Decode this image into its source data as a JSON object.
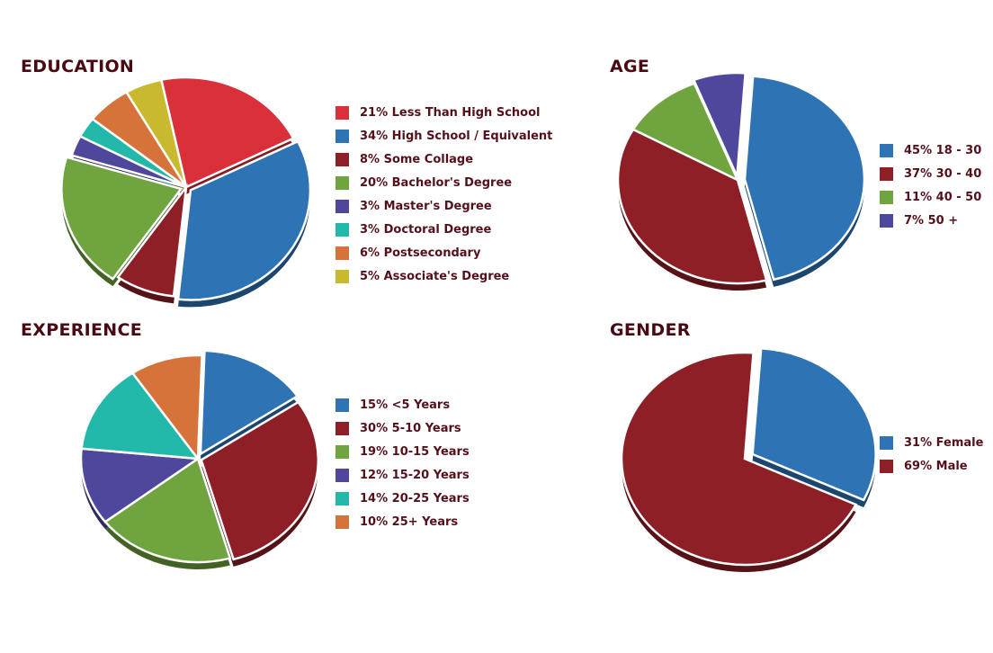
{
  "chart_data": [
    {
      "type": "pie",
      "title": "EDUCATION",
      "labels": [
        "21% Less Than High School",
        "34% High School / Equivalent",
        "8% Some Collage",
        "20% Bachelor's Degree",
        "3% Master's Degree",
        "3% Doctoral Degree",
        "6% Postsecondary",
        "5% Associate's Degree"
      ],
      "categories": [
        "Less Than High School",
        "High School / Equivalent",
        "Some Collage",
        "Bachelor's Degree",
        "Master's Degree",
        "Doctoral Degree",
        "Postsecondary",
        "Associate's Degree"
      ],
      "values": [
        21,
        34,
        8,
        20,
        3,
        3,
        6,
        5
      ],
      "colors": [
        "#d9303a",
        "#2e74b5",
        "#8e1f26",
        "#6fa43f",
        "#4f479b",
        "#22b8aa",
        "#d6733a",
        "#c9b92f"
      ],
      "legend": "right"
    },
    {
      "type": "pie",
      "title": "AGE",
      "labels": [
        "45% 18 - 30",
        "37% 30 - 40",
        "11% 40 - 50",
        "7% 50 +"
      ],
      "categories": [
        "18 - 30",
        "30 - 40",
        "40 - 50",
        "50 +"
      ],
      "values": [
        45,
        37,
        11,
        7
      ],
      "colors": [
        "#2e74b5",
        "#8e1f26",
        "#6fa43f",
        "#4f479b"
      ],
      "legend": "right"
    },
    {
      "type": "pie",
      "title": "EXPERIENCE",
      "labels": [
        "15%  <5 Years",
        "30% 5-10 Years",
        "19% 10-15 Years",
        "12% 15-20 Years",
        "14% 20-25 Years",
        "10% 25+ Years"
      ],
      "categories": [
        "<5 Years",
        "5-10 Years",
        "10-15 Years",
        "15-20 Years",
        "20-25 Years",
        "25+ Years"
      ],
      "values": [
        15,
        30,
        19,
        12,
        14,
        10
      ],
      "colors": [
        "#2e74b5",
        "#8e1f26",
        "#6fa43f",
        "#4f479b",
        "#22b8aa",
        "#d6733a"
      ],
      "legend": "right"
    },
    {
      "type": "pie",
      "title": "GENDER",
      "labels": [
        "31% Female",
        "69% Male"
      ],
      "categories": [
        "Female",
        "Male"
      ],
      "values": [
        31,
        69
      ],
      "colors": [
        "#2e74b5",
        "#8e1f26"
      ],
      "legend": "right"
    }
  ]
}
